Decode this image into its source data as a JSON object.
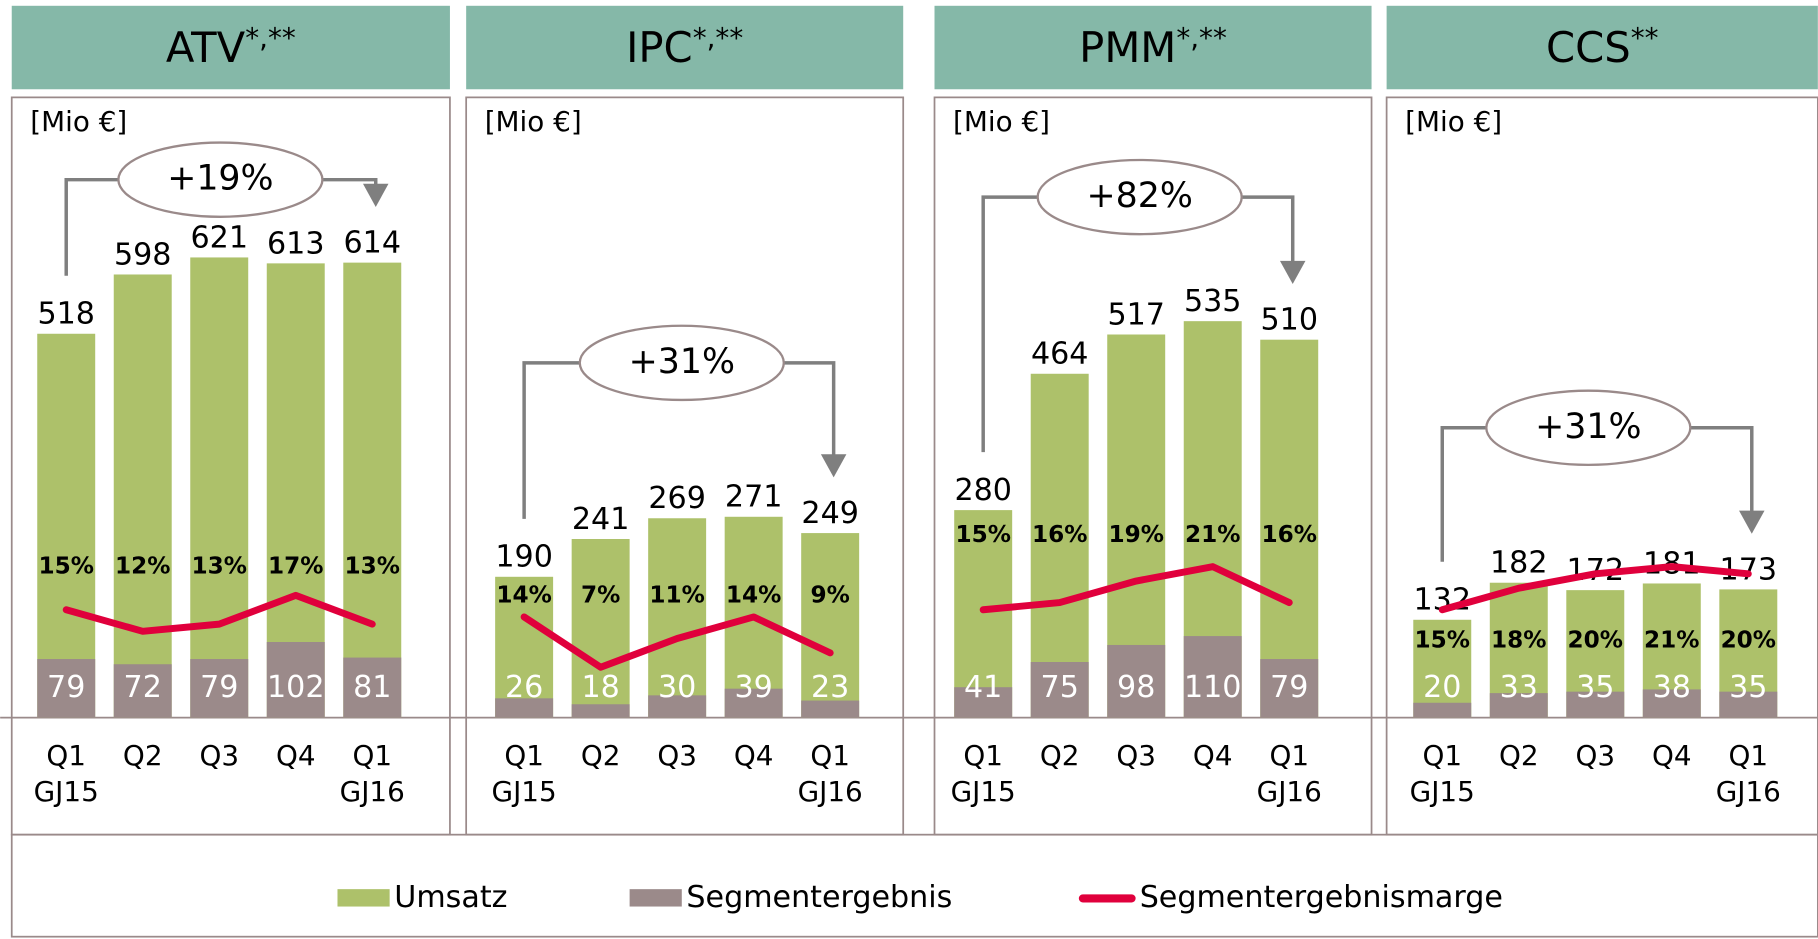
{
  "chart_data": [
    {
      "type": "bar",
      "title": "ATV",
      "title_note": "*,**",
      "unit": "[Mio €]",
      "annotation": "+19%",
      "categories": [
        "Q1 GJ15",
        "Q2",
        "Q3",
        "Q4",
        "Q1 GJ16"
      ],
      "ylim": [
        0,
        970
      ],
      "y2lim": [
        0,
        100
      ],
      "series": [
        {
          "name": "Umsatz",
          "color": "#adc16a",
          "values": [
            518,
            598,
            621,
            613,
            614
          ]
        },
        {
          "name": "Segmentergebnis",
          "color": "#9b8a8a",
          "values": [
            79,
            72,
            79,
            102,
            81
          ]
        },
        {
          "name": "Segmentergebnismarge",
          "color": "#e0003c",
          "axis": "y2",
          "values": [
            15,
            12,
            13,
            17,
            13
          ],
          "value_labels": [
            "15%",
            "12%",
            "13%",
            "17%",
            "13%"
          ]
        }
      ]
    },
    {
      "type": "bar",
      "title": "IPC",
      "title_note": "*,**",
      "unit": "[Mio €]",
      "annotation": "+31%",
      "categories": [
        "Q1 GJ15",
        "Q2",
        "Q3",
        "Q4",
        "Q1 GJ16"
      ],
      "ylim": [
        0,
        970
      ],
      "y2lim": [
        0,
        100
      ],
      "series": [
        {
          "name": "Umsatz",
          "color": "#adc16a",
          "values": [
            190,
            241,
            269,
            271,
            249
          ]
        },
        {
          "name": "Segmentergebnis",
          "color": "#9b8a8a",
          "values": [
            26,
            18,
            30,
            39,
            23
          ]
        },
        {
          "name": "Segmentergebnismarge",
          "color": "#e0003c",
          "axis": "y2",
          "values": [
            14,
            7,
            11,
            14,
            9
          ],
          "value_labels": [
            "14%",
            "7%",
            "11%",
            "14%",
            "9%"
          ]
        }
      ]
    },
    {
      "type": "bar",
      "title": "PMM",
      "title_note": "*,**",
      "unit": "[Mio €]",
      "annotation": "+82%",
      "categories": [
        "Q1 GJ15",
        "Q2",
        "Q3",
        "Q4",
        "Q1 GJ16"
      ],
      "ylim": [
        0,
        970
      ],
      "y2lim": [
        0,
        100
      ],
      "series": [
        {
          "name": "Umsatz",
          "color": "#adc16a",
          "values": [
            280,
            464,
            517,
            535,
            510
          ]
        },
        {
          "name": "Segmentergebnis",
          "color": "#9b8a8a",
          "values": [
            41,
            75,
            98,
            110,
            79
          ]
        },
        {
          "name": "Segmentergebnismarge",
          "color": "#e0003c",
          "axis": "y2",
          "values": [
            15,
            16,
            19,
            21,
            16
          ],
          "value_labels": [
            "15%",
            "16%",
            "19%",
            "21%",
            "16%"
          ]
        }
      ]
    },
    {
      "type": "bar",
      "title": "CCS",
      "title_note": "**",
      "unit": "[Mio €]",
      "annotation": "+31%",
      "categories": [
        "Q1 GJ15",
        "Q2",
        "Q3",
        "Q4",
        "Q1 GJ16"
      ],
      "ylim": [
        0,
        970
      ],
      "y2lim": [
        0,
        100
      ],
      "series": [
        {
          "name": "Umsatz",
          "color": "#adc16a",
          "values": [
            132,
            182,
            172,
            181,
            173
          ]
        },
        {
          "name": "Segmentergebnis",
          "color": "#9b8a8a",
          "values": [
            20,
            33,
            35,
            38,
            35
          ]
        },
        {
          "name": "Segmentergebnismarge",
          "color": "#e0003c",
          "axis": "y2",
          "values": [
            15,
            18,
            20,
            21,
            20
          ],
          "value_labels": [
            "15%",
            "18%",
            "20%",
            "21%",
            "20%"
          ]
        }
      ]
    }
  ]
}
